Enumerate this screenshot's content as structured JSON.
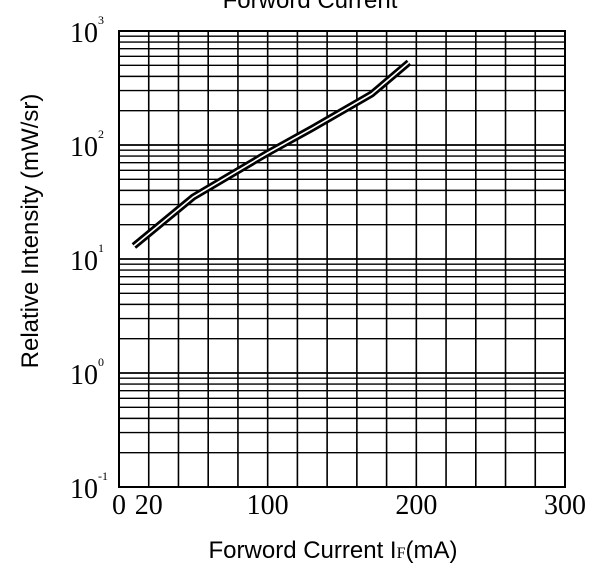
{
  "chart_data": {
    "type": "line",
    "title": "Forword Current",
    "xlabel": "Forword Current I",
    "xlabel_subscript": "F",
    "xlabel_unit": "(mA)",
    "ylabel": "Relative Intensity (mW/sr)",
    "xlim": [
      0,
      300
    ],
    "x_scale": "linear",
    "x_tick_labels": [
      {
        "value": 0,
        "label": "0"
      },
      {
        "value": 20,
        "label": "20"
      },
      {
        "value": 100,
        "label": "100"
      },
      {
        "value": 200,
        "label": "200"
      },
      {
        "value": 300,
        "label": "300"
      }
    ],
    "x_gridlines": [
      0,
      20,
      40,
      60,
      80,
      100,
      120,
      140,
      160,
      180,
      200,
      220,
      240,
      260,
      280,
      300
    ],
    "ylim": [
      0.1,
      1000
    ],
    "y_scale": "log",
    "y_tick_labels": [
      {
        "value": 0.1,
        "base": "10",
        "exp": "-1"
      },
      {
        "value": 1,
        "base": "10",
        "exp": "0"
      },
      {
        "value": 10,
        "base": "10",
        "exp": "1"
      },
      {
        "value": 100,
        "base": "10",
        "exp": "2"
      },
      {
        "value": 1000,
        "base": "10",
        "exp": "3"
      }
    ],
    "grid": true,
    "line_color": "#000000",
    "series": [
      {
        "x": [
          10,
          50,
          100,
          130,
          170,
          195
        ],
        "y": [
          13,
          35,
          85,
          140,
          280,
          530
        ]
      }
    ]
  }
}
